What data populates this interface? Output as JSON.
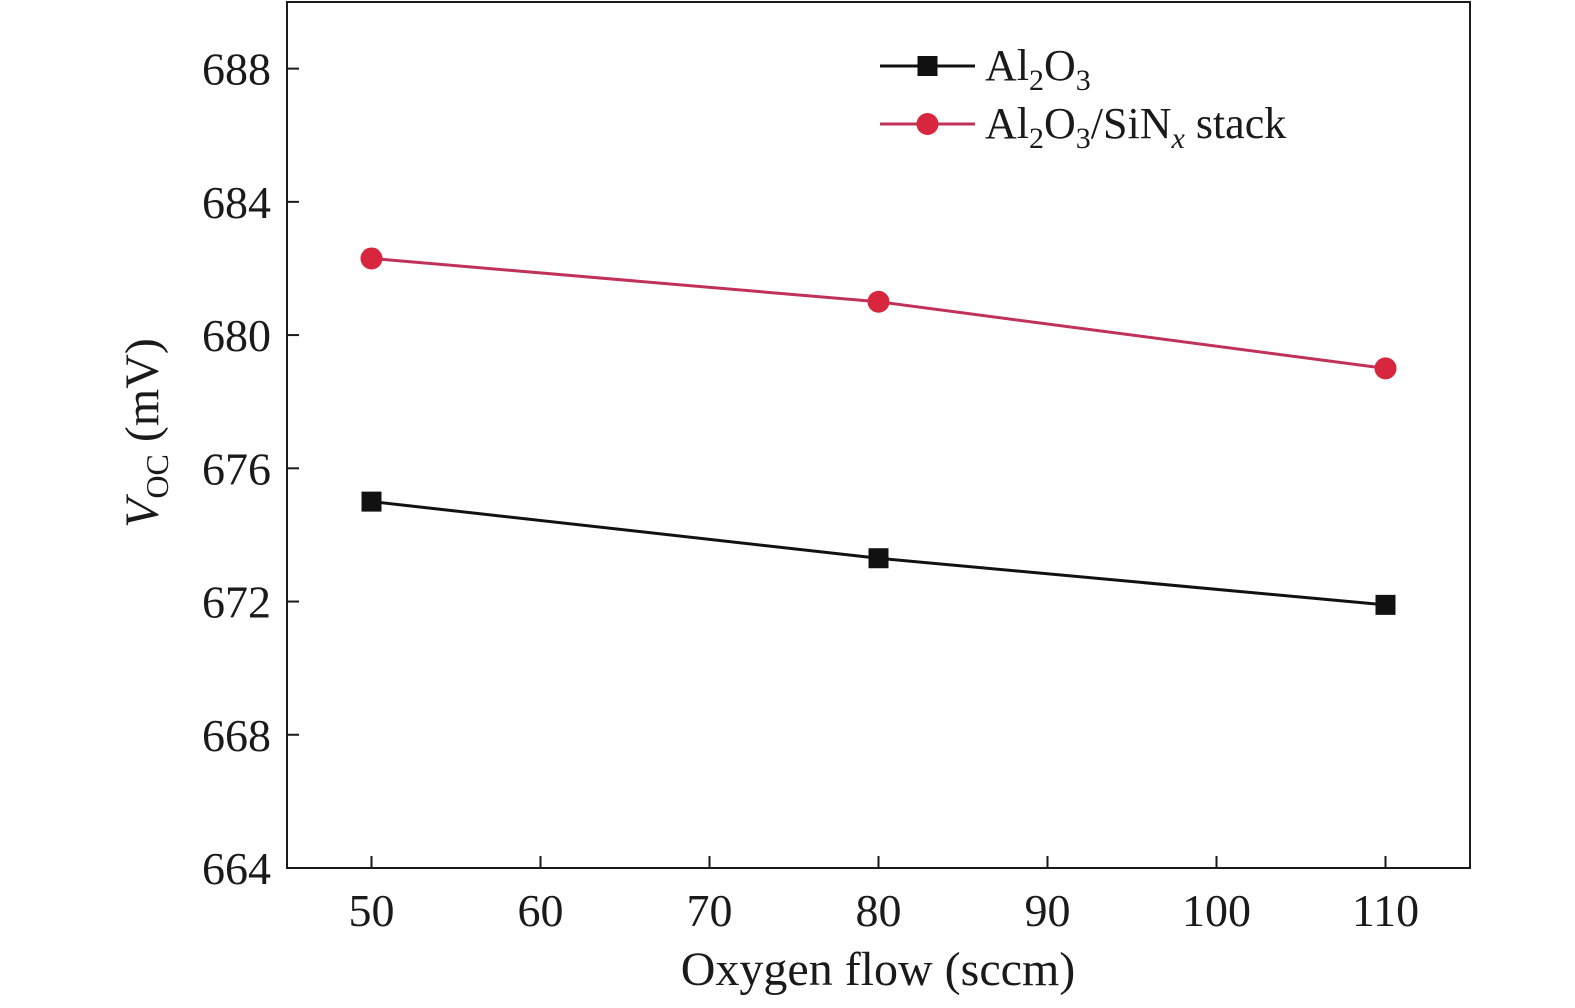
{
  "chart_data": {
    "type": "line",
    "title": "",
    "xlabel": "Oxygen flow (sccm)",
    "ylabel": {
      "symbol": "V",
      "subscript": "OC",
      "unit": " (mV)"
    },
    "xlim": [
      45,
      115
    ],
    "ylim": [
      664,
      690
    ],
    "xticks": [
      50,
      60,
      70,
      80,
      90,
      100,
      110
    ],
    "yticks": [
      664,
      668,
      672,
      676,
      680,
      684,
      688
    ],
    "x": [
      50,
      80,
      110
    ],
    "series": [
      {
        "name": "Al2O3",
        "label_parts": [
          {
            "t": "Al"
          },
          {
            "t": "2",
            "sub": true
          },
          {
            "t": "O"
          },
          {
            "t": "3",
            "sub": true
          }
        ],
        "values": [
          675.0,
          673.3,
          671.9
        ],
        "color": "#111111",
        "marker": "square"
      },
      {
        "name": "Al2O3/SiNx stack",
        "label_parts": [
          {
            "t": "Al"
          },
          {
            "t": "2",
            "sub": true
          },
          {
            "t": "O"
          },
          {
            "t": "3",
            "sub": true
          },
          {
            "t": "/SiN"
          },
          {
            "t": "x",
            "sub": true,
            "italic": true
          },
          {
            "t": " stack"
          }
        ],
        "values": [
          682.3,
          681.0,
          679.0
        ],
        "color": "#d7263d",
        "line_color": "#c0325a",
        "marker": "circle"
      }
    ],
    "legend_position": "top-right",
    "grid": false
  }
}
